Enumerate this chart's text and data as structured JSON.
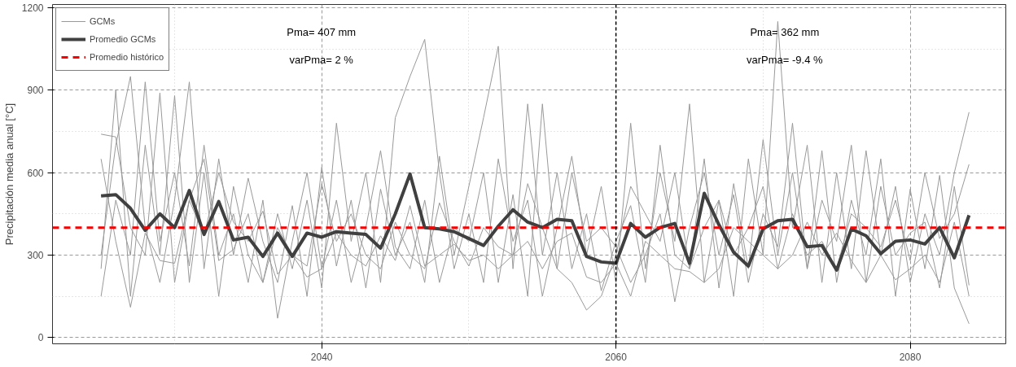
{
  "chart_data": {
    "type": "line",
    "ylabel": "Precipitación media anual [°C]",
    "x": [
      2025,
      2026,
      2027,
      2028,
      2029,
      2030,
      2031,
      2032,
      2033,
      2034,
      2035,
      2036,
      2037,
      2038,
      2039,
      2040,
      2041,
      2042,
      2043,
      2044,
      2045,
      2046,
      2047,
      2048,
      2049,
      2050,
      2051,
      2052,
      2053,
      2054,
      2055,
      2056,
      2057,
      2058,
      2059,
      2060,
      2061,
      2062,
      2063,
      2064,
      2065,
      2066,
      2067,
      2068,
      2069,
      2070,
      2071,
      2072,
      2073,
      2074,
      2075,
      2076,
      2077,
      2078,
      2079,
      2080,
      2081,
      2082,
      2083,
      2084
    ],
    "series": [
      {
        "name": "GCMs",
        "color": "#999999",
        "values": [
          250,
          900,
          150,
          700,
          300,
          880,
          200,
          600,
          150,
          550,
          300,
          200,
          450,
          250,
          500,
          180,
          780,
          350,
          600,
          200,
          800,
          950,
          1085,
          600,
          250,
          450,
          200,
          650,
          350,
          500,
          150,
          400,
          660,
          300,
          550,
          200,
          780,
          250,
          600,
          350,
          850,
          200,
          500,
          150,
          650,
          300,
          1150,
          400,
          700,
          200,
          600,
          250,
          680,
          300,
          550,
          200,
          450,
          300,
          600,
          820
        ]
      },
      {
        "color": "#999999",
        "values": [
          300,
          700,
          950,
          400,
          200,
          500,
          930,
          250,
          650,
          300,
          580,
          350,
          200,
          480,
          150,
          620,
          260,
          500,
          180,
          540,
          300,
          420,
          200,
          660,
          300,
          550,
          800,
          1060,
          250,
          850,
          300,
          600,
          250,
          450,
          170,
          350,
          480,
          200,
          700,
          300,
          250,
          650,
          180,
          560,
          250,
          720,
          300,
          600,
          250,
          680,
          200,
          500,
          300,
          650,
          150,
          540,
          250,
          590,
          180,
          50
        ]
      },
      {
        "color": "#999999",
        "values": [
          150,
          500,
          300,
          930,
          350,
          600,
          260,
          700,
          300,
          450,
          200,
          500,
          70,
          350,
          600,
          250,
          500,
          200,
          400,
          680,
          330,
          250,
          500,
          200,
          400,
          350,
          600,
          200,
          520,
          150,
          850,
          250,
          600,
          350,
          400,
          330,
          200,
          300,
          450,
          130,
          400,
          600,
          300,
          520,
          200,
          450,
          330,
          780,
          250,
          500,
          350,
          700,
          200,
          550,
          300,
          380,
          420,
          180,
          550,
          190
        ]
      },
      {
        "color": "#999999",
        "values": [
          740,
          730,
          400,
          300,
          890,
          200,
          500,
          650,
          280,
          320,
          450,
          200,
          400,
          300,
          260,
          560,
          350,
          450,
          300,
          250,
          420,
          300,
          250,
          490,
          350,
          260,
          400,
          330,
          300,
          560,
          400,
          250,
          200,
          100,
          150,
          300,
          550,
          450,
          350,
          600,
          250,
          400,
          500,
          300,
          400,
          550,
          250,
          450,
          300,
          350,
          250,
          450,
          400,
          330,
          500,
          280,
          600,
          360,
          450,
          630
        ]
      },
      {
        "color": "#999999",
        "values": [
          650,
          350,
          110,
          380,
          280,
          270,
          500,
          370,
          600,
          420,
          350,
          460,
          230,
          300,
          220,
          250,
          380,
          300,
          260,
          370,
          280,
          480,
          260,
          300,
          340,
          280,
          300,
          250,
          300,
          350,
          250,
          350,
          380,
          220,
          200,
          270,
          150,
          350,
          300,
          250,
          240,
          200,
          250,
          400,
          350,
          300,
          250,
          300,
          420,
          300,
          380,
          280,
          200,
          300,
          210,
          250,
          300,
          200,
          420,
          150
        ]
      },
      {
        "name": "Promedio GCMs",
        "color": "#404040",
        "values": [
          515,
          520,
          470,
          390,
          450,
          400,
          535,
          375,
          495,
          355,
          365,
          295,
          380,
          295,
          380,
          365,
          385,
          380,
          375,
          325,
          450,
          595,
          400,
          395,
          385,
          360,
          335,
          405,
          465,
          420,
          400,
          430,
          425,
          295,
          275,
          270,
          415,
          365,
          400,
          415,
          270,
          525,
          410,
          310,
          260,
          395,
          425,
          430,
          330,
          335,
          245,
          395,
          370,
          305,
          350,
          355,
          340,
          400,
          290,
          445
        ]
      }
    ],
    "ref_lines": [
      {
        "axis": "y",
        "value": 400,
        "label": "Promedio histórico",
        "color": "#ff0000",
        "line_style": "dashed"
      },
      {
        "axis": "x",
        "value": 2060,
        "color": "#000000",
        "line_style": "dashed"
      }
    ],
    "annotations": [
      "Pma= 407 mm",
      "varPma= 2 %",
      "Pma= 362 mm",
      "varPma= -9.4 %"
    ],
    "xlim": [
      2021.7,
      2086.5
    ],
    "ylim": [
      -23,
      1212
    ],
    "xticks": [
      2040,
      2060,
      2080
    ],
    "yticks": [
      0,
      300,
      600,
      900,
      1200
    ],
    "grid": true,
    "legend": "top left",
    "line_style": "solid"
  }
}
